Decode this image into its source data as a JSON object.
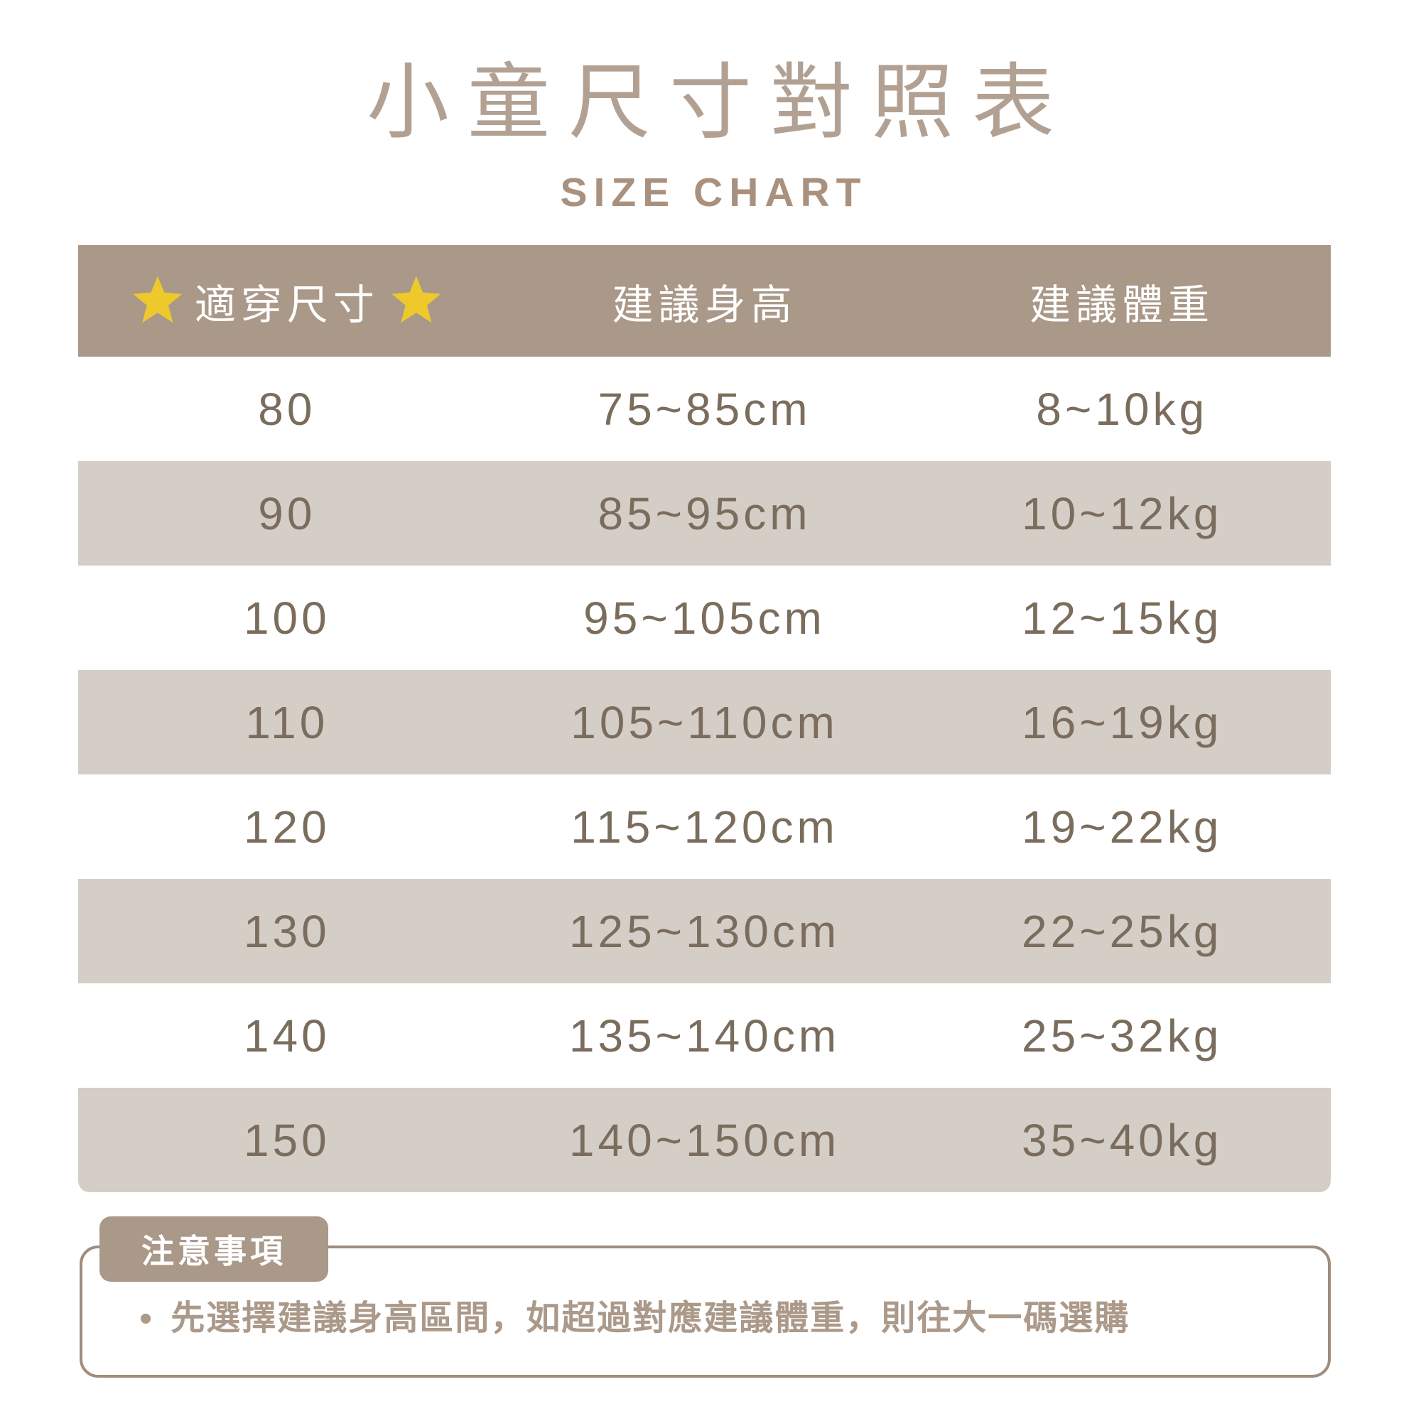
{
  "title": "小童尺寸對照表",
  "subtitle": "SIZE CHART",
  "chart_data": {
    "type": "table",
    "title": "小童尺寸對照表",
    "subtitle": "SIZE CHART",
    "columns": [
      "適穿尺寸",
      "建議身高",
      "建議體重"
    ],
    "rows": [
      [
        "80",
        "75~85cm",
        "8~10kg"
      ],
      [
        "90",
        "85~95cm",
        "10~12kg"
      ],
      [
        "100",
        "95~105cm",
        "12~15kg"
      ],
      [
        "110",
        "105~110cm",
        "16~19kg"
      ],
      [
        "120",
        "115~120cm",
        "19~22kg"
      ],
      [
        "130",
        "125~130cm",
        "22~25kg"
      ],
      [
        "140",
        "135~140cm",
        "25~32kg"
      ],
      [
        "150",
        "140~150cm",
        "35~40kg"
      ]
    ],
    "layout_hints": {
      "header_background": "#aa9888",
      "alternate_row_background": "#d5cec7",
      "first_data_row_background": "#ffffff",
      "columns_equal_width": true
    }
  },
  "notes": {
    "tab_label": "注意事項",
    "bullet": "•",
    "text": "先選擇建議身高區間，如超過對應建議體重，則往大一碼選購"
  },
  "icons": {
    "header_decoration": "star-icon",
    "star_color": "#eec92b"
  },
  "colors": {
    "title_text": "#b2a192",
    "subtitle_text": "#aa917e",
    "header_bg": "#aa9888",
    "header_text": "#ffffff",
    "row_alt_bg": "#d5cec7",
    "cell_text": "#7b6d5d",
    "notes_border": "#a08d7d",
    "notes_text": "#ab998a",
    "background": "#ffffff"
  }
}
